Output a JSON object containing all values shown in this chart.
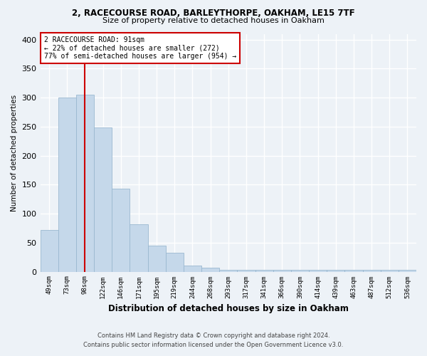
{
  "title1": "2, RACECOURSE ROAD, BARLEYTHORPE, OAKHAM, LE15 7TF",
  "title2": "Size of property relative to detached houses in Oakham",
  "xlabel": "Distribution of detached houses by size in Oakham",
  "ylabel": "Number of detached properties",
  "footnote1": "Contains HM Land Registry data © Crown copyright and database right 2024.",
  "footnote2": "Contains public sector information licensed under the Open Government Licence v3.0.",
  "categories": [
    "49sqm",
    "73sqm",
    "98sqm",
    "122sqm",
    "146sqm",
    "171sqm",
    "195sqm",
    "219sqm",
    "244sqm",
    "268sqm",
    "293sqm",
    "317sqm",
    "341sqm",
    "366sqm",
    "390sqm",
    "414sqm",
    "439sqm",
    "463sqm",
    "487sqm",
    "512sqm",
    "536sqm"
  ],
  "bar_values": [
    72,
    300,
    305,
    248,
    143,
    82,
    45,
    32,
    10,
    7,
    3,
    3,
    3,
    3,
    3,
    3,
    3,
    3,
    3,
    3,
    3
  ],
  "bar_color": "#c5d8ea",
  "bar_edge_color": "#9ab8d0",
  "vline_color": "#cc0000",
  "vline_x_index": 2,
  "annotation_title": "2 RACECOURSE ROAD: 91sqm",
  "annotation_line2": "← 22% of detached houses are smaller (272)",
  "annotation_line3": "77% of semi-detached houses are larger (954) →",
  "annotation_box_color": "#ffffff",
  "annotation_border_color": "#cc0000",
  "bg_color": "#edf2f7",
  "grid_color": "#ffffff",
  "ylim": [
    0,
    410
  ],
  "yticks": [
    0,
    50,
    100,
    150,
    200,
    250,
    300,
    350,
    400
  ]
}
